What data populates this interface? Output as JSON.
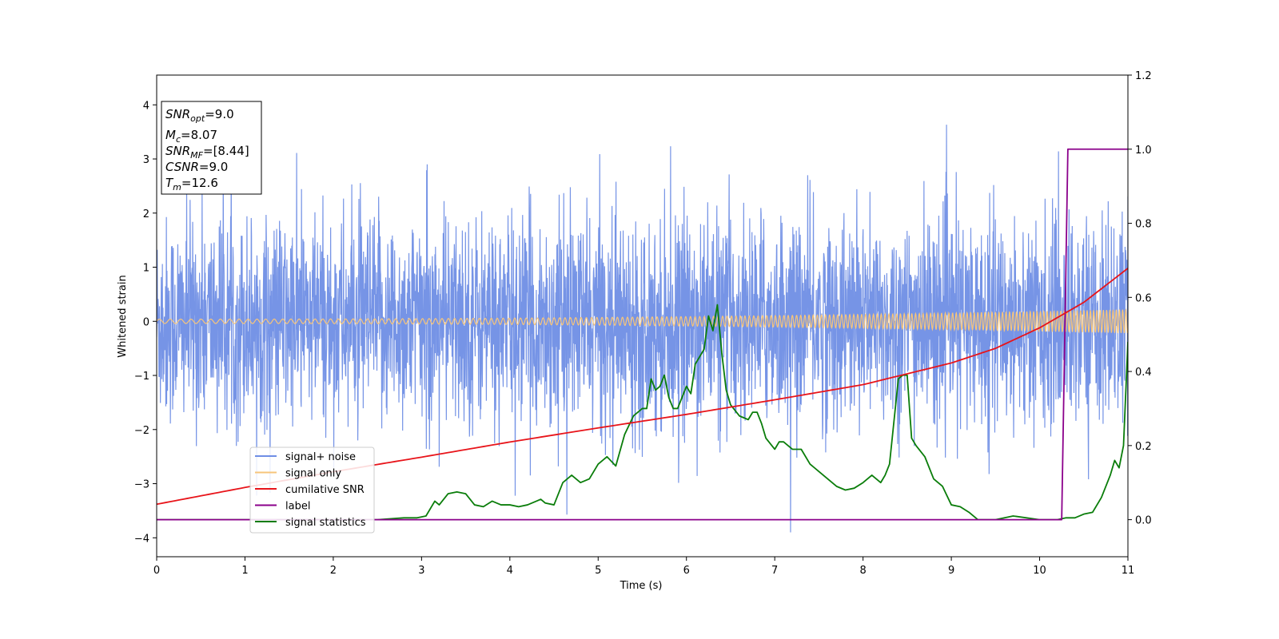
{
  "chart_data": {
    "type": "line",
    "xlabel": "Time (s)",
    "ylabel": "Whitened strain",
    "xlim": [
      0,
      11
    ],
    "ylim_left": [
      -4.35,
      4.55
    ],
    "ylim_right": [
      -0.1,
      1.2
    ],
    "x_ticks": [
      0,
      1,
      2,
      3,
      4,
      5,
      6,
      7,
      8,
      9,
      10,
      11
    ],
    "y_ticks_left": [
      -4,
      -3,
      -2,
      -1,
      0,
      1,
      2,
      3,
      4
    ],
    "y_ticks_right": [
      0.0,
      0.2,
      0.4,
      0.6,
      0.8,
      1.0,
      1.2
    ],
    "info_box": {
      "snr_opt": {
        "base": "SNR",
        "sub": "opt",
        "value": "=9.0"
      },
      "mc": {
        "base": "M",
        "sub": "c",
        "value": "=8.07"
      },
      "snr_mf": {
        "base": "SNR",
        "sub": "MF",
        "value": "=[8.44]"
      },
      "csnr": {
        "base": "CSNR",
        "value": "=9.0"
      },
      "tm": {
        "base": "T",
        "sub": "m",
        "value": "=12.6"
      }
    },
    "legend": {
      "placement": "lower-left",
      "entries": [
        {
          "label": "signal+ noise",
          "color": "#6f8ee5"
        },
        {
          "label": "signal only",
          "color": "#f7c57a"
        },
        {
          "label": "cumilative SNR",
          "color": "#e8141a"
        },
        {
          "label": "label",
          "color": "#8b008b"
        },
        {
          "label": "signal statistics",
          "color": "#0a7d0a"
        }
      ]
    },
    "series": [
      {
        "name": "signal+ noise",
        "axis": "left",
        "color": "#6f8ee5",
        "description_values": "whitened noisy time series, amplitude roughly within [-3.9, 4.2]"
      },
      {
        "name": "signal only",
        "axis": "left",
        "color": "#f7c57a",
        "amplitude_start": 0.04,
        "amplitude_end": 0.22
      },
      {
        "name": "cumilative SNR",
        "axis": "left",
        "color": "#e8141a",
        "x": [
          0,
          1,
          2,
          3,
          4,
          5,
          6,
          7,
          8,
          9,
          9.5,
          10,
          10.5,
          11
        ],
        "y": [
          -3.38,
          -3.07,
          -2.78,
          -2.51,
          -2.23,
          -1.97,
          -1.72,
          -1.45,
          -1.17,
          -0.77,
          -0.5,
          -0.12,
          0.35,
          0.98
        ]
      },
      {
        "name": "label",
        "axis": "right",
        "color": "#8b008b",
        "x": [
          0,
          10.25,
          10.32,
          11
        ],
        "y": [
          0.0,
          0.0,
          1.0,
          1.0
        ]
      },
      {
        "name": "signal statistics",
        "axis": "right",
        "color": "#0a7d0a",
        "x": [
          0,
          0.5,
          1,
          1.5,
          2,
          2.5,
          2.8,
          2.95,
          3.05,
          3.15,
          3.2,
          3.3,
          3.4,
          3.5,
          3.6,
          3.7,
          3.8,
          3.9,
          4.0,
          4.1,
          4.2,
          4.3,
          4.35,
          4.4,
          4.5,
          4.6,
          4.7,
          4.8,
          4.9,
          5.0,
          5.1,
          5.2,
          5.3,
          5.4,
          5.5,
          5.55,
          5.6,
          5.65,
          5.7,
          5.75,
          5.8,
          5.85,
          5.9,
          6.0,
          6.05,
          6.1,
          6.2,
          6.25,
          6.3,
          6.35,
          6.4,
          6.45,
          6.5,
          6.6,
          6.7,
          6.75,
          6.8,
          6.85,
          6.9,
          7.0,
          7.05,
          7.1,
          7.2,
          7.3,
          7.4,
          7.5,
          7.6,
          7.7,
          7.8,
          7.9,
          8.0,
          8.1,
          8.2,
          8.25,
          8.3,
          8.4,
          8.45,
          8.5,
          8.55,
          8.6,
          8.7,
          8.8,
          8.9,
          9.0,
          9.1,
          9.2,
          9.3,
          9.5,
          9.7,
          10.0,
          10.2,
          10.3,
          10.4,
          10.5,
          10.6,
          10.7,
          10.8,
          10.85,
          10.9,
          10.95,
          11.0
        ],
        "y": [
          0.0,
          0.0,
          0.0,
          0.0,
          0.0,
          0.0,
          0.005,
          0.005,
          0.01,
          0.05,
          0.04,
          0.07,
          0.075,
          0.07,
          0.04,
          0.035,
          0.05,
          0.04,
          0.04,
          0.035,
          0.04,
          0.05,
          0.055,
          0.045,
          0.04,
          0.1,
          0.12,
          0.1,
          0.11,
          0.15,
          0.17,
          0.145,
          0.23,
          0.28,
          0.3,
          0.3,
          0.38,
          0.35,
          0.36,
          0.39,
          0.33,
          0.3,
          0.3,
          0.36,
          0.34,
          0.42,
          0.46,
          0.55,
          0.51,
          0.58,
          0.45,
          0.35,
          0.31,
          0.28,
          0.27,
          0.29,
          0.29,
          0.26,
          0.22,
          0.19,
          0.21,
          0.21,
          0.19,
          0.19,
          0.15,
          0.13,
          0.11,
          0.09,
          0.08,
          0.085,
          0.1,
          0.12,
          0.1,
          0.12,
          0.15,
          0.38,
          0.39,
          0.39,
          0.22,
          0.2,
          0.17,
          0.11,
          0.09,
          0.04,
          0.035,
          0.02,
          0.0,
          0.0,
          0.01,
          0.0,
          0.0,
          0.005,
          0.005,
          0.015,
          0.02,
          0.06,
          0.12,
          0.16,
          0.14,
          0.2,
          0.48
        ]
      }
    ]
  }
}
